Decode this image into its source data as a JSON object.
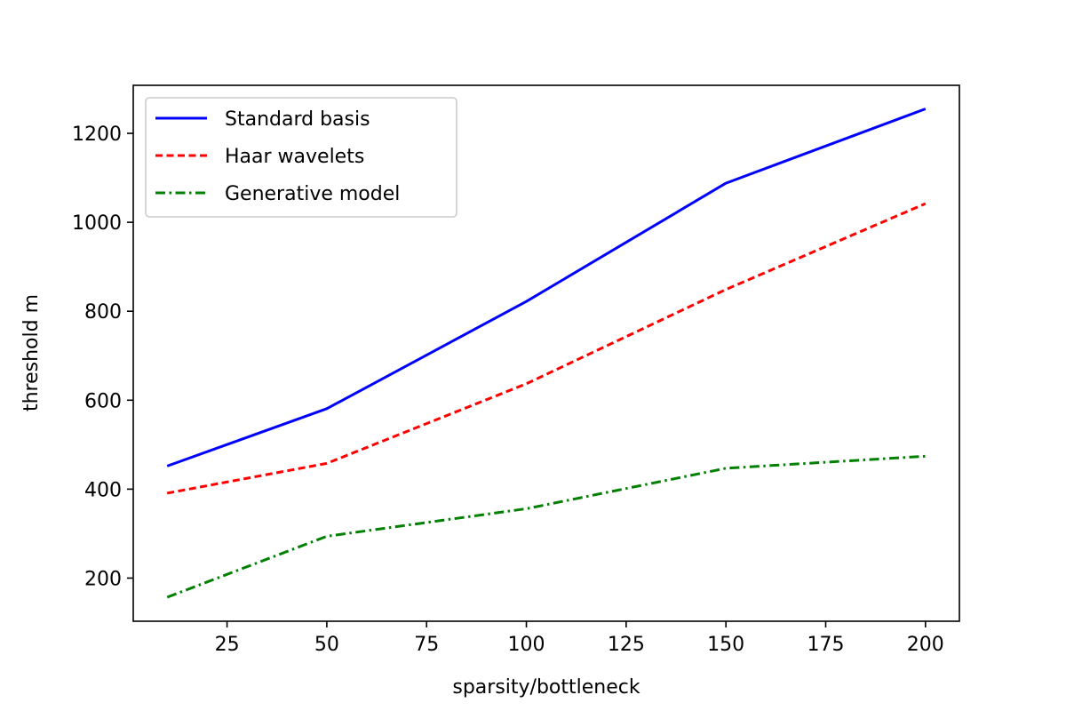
{
  "chart_data": {
    "type": "line",
    "title": "",
    "xlabel": "sparsity/bottleneck",
    "ylabel": "threshold m",
    "xlim": [
      1.5,
      208.5
    ],
    "ylim": [
      103,
      1308
    ],
    "xticks": [
      25,
      50,
      75,
      100,
      125,
      150,
      175,
      200
    ],
    "yticks": [
      200,
      400,
      600,
      800,
      1000,
      1200
    ],
    "grid": false,
    "legend_position": "top-left",
    "x": [
      10,
      50,
      100,
      150,
      200
    ],
    "series": [
      {
        "name": "Standard basis",
        "color": "#0000ff",
        "style": "solid",
        "values": [
          452,
          581,
          822,
          1088,
          1255
        ]
      },
      {
        "name": "Haar wavelets",
        "color": "#ff0000",
        "style": "dashed",
        "values": [
          391,
          458,
          637,
          849,
          1042
        ]
      },
      {
        "name": "Generative model",
        "color": "#008000",
        "style": "dashdot",
        "values": [
          157,
          294,
          356,
          447,
          474
        ]
      }
    ]
  }
}
